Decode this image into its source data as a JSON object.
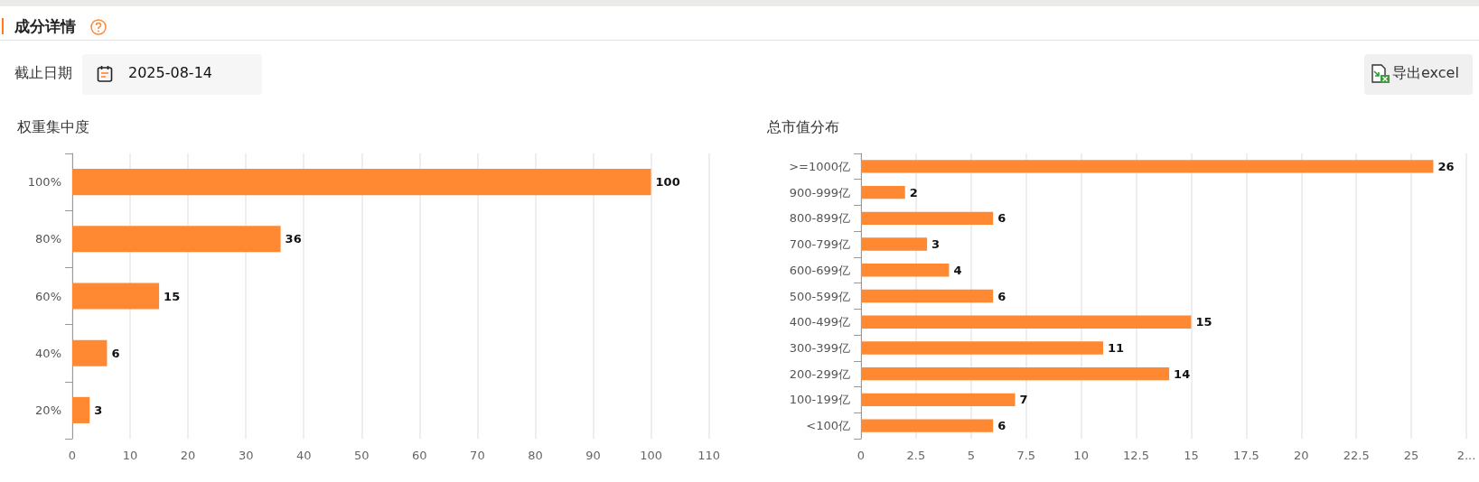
{
  "chart_data": [
    {
      "type": "other",
      "title": "成分详情",
      "annotations": [
        "截止日期",
        "2025-08-14",
        "导出excel"
      ]
    },
    {
      "type": "bar",
      "title": "权重集中度",
      "orientation": "horizontal",
      "categories": [
        "100%",
        "80%",
        "60%",
        "40%",
        "20%"
      ],
      "values": [
        100,
        36,
        15,
        6,
        3
      ],
      "color": "#ff8833",
      "xlim": [
        0,
        110
      ],
      "xticks": [
        0,
        10,
        20,
        30,
        40,
        50,
        60,
        70,
        80,
        90,
        100,
        110
      ],
      "grid": "x",
      "data_labels": true
    },
    {
      "type": "bar",
      "title": "总市值分布",
      "orientation": "horizontal",
      "categories": [
        ">=1000亿",
        "900-999亿",
        "800-899亿",
        "700-799亿",
        "600-699亿",
        "500-599亿",
        "400-499亿",
        "300-399亿",
        "200-299亿",
        "100-199亿",
        "<100亿"
      ],
      "values": [
        26,
        2,
        6,
        3,
        4,
        6,
        15,
        11,
        14,
        7,
        6
      ],
      "color": "#ff8833",
      "xlim": [
        0,
        27.5
      ],
      "xticks": [
        0,
        2.5,
        5,
        7.5,
        10,
        12.5,
        15,
        17.5,
        20,
        22.5,
        25,
        {
          "value": 27.5,
          "label": "2..."
        }
      ],
      "grid": "x",
      "data_labels": true
    }
  ]
}
